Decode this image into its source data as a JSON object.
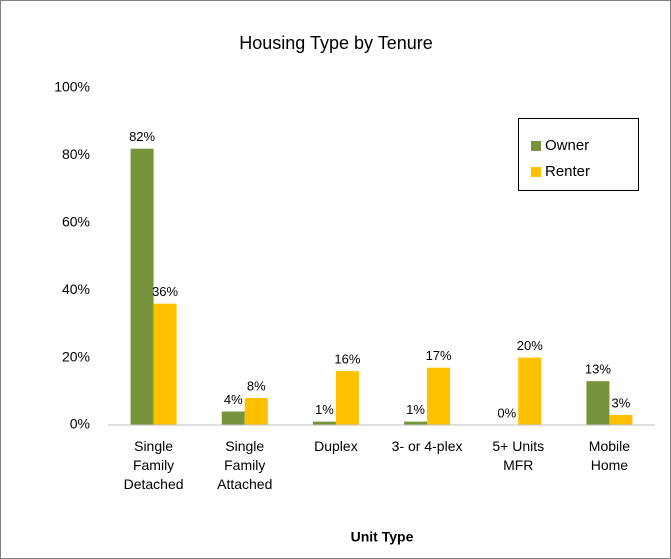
{
  "chart_data": {
    "type": "bar",
    "title": "Housing Type by Tenure",
    "x_label": "Unit Type",
    "categories": [
      "Single\nFamily\nDetached",
      "Single\nFamily\nAttached",
      "Duplex",
      "3- or 4-plex",
      "5+ Units\nMFR",
      "Mobile\nHome"
    ],
    "series": [
      {
        "name": "Owner",
        "color": "#77933c",
        "values": [
          82,
          4,
          1,
          1,
          0,
          13
        ],
        "value_labels": [
          "82%",
          "4%",
          "1%",
          "1%",
          "0%",
          "13%"
        ]
      },
      {
        "name": "Renter",
        "color": "#ffc000",
        "values": [
          36,
          8,
          16,
          17,
          20,
          3
        ],
        "value_labels": [
          "36%",
          "8%",
          "16%",
          "17%",
          "20%",
          "3%"
        ]
      }
    ],
    "ylim": [
      0,
      100
    ],
    "yticks": [
      {
        "value": 0,
        "label": "0%"
      },
      {
        "value": 20,
        "label": "20%"
      },
      {
        "value": 40,
        "label": "40%"
      },
      {
        "value": 60,
        "label": "60%"
      },
      {
        "value": 80,
        "label": "80%"
      },
      {
        "value": 100,
        "label": "100%"
      }
    ],
    "grid": false,
    "legend": "upper right"
  }
}
